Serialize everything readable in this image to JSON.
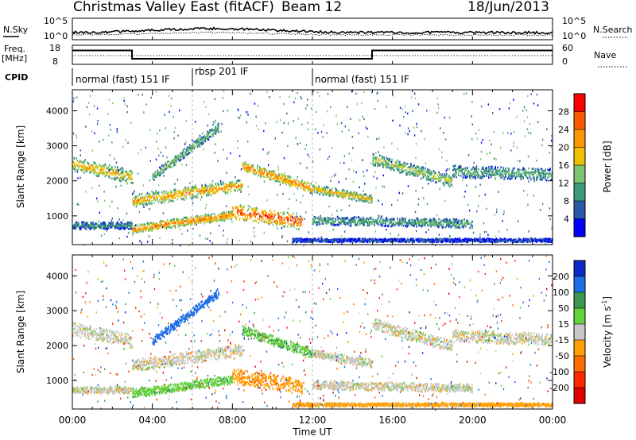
{
  "header": {
    "station": "Christmas Valley East (fitACF)",
    "beam": "Beam 12",
    "date": "18/Jun/2013"
  },
  "sky_panel": {
    "left_label": "N.Sky",
    "left_ticks": [
      "10^5",
      "10^0"
    ],
    "right_label": "N.Search",
    "right_ticks": [
      "10^5",
      "10^0"
    ]
  },
  "freq_panel": {
    "left_label_1": "Freq.",
    "left_label_2": "[MHz]",
    "left_ticks": [
      "18",
      "8"
    ],
    "right_label": "Nave",
    "right_ticks": [
      "60",
      "0"
    ]
  },
  "cpid": {
    "label": "CPID",
    "segments": [
      {
        "label": "normal (fast) 151 IF",
        "start_hour": 0,
        "end_hour": 6
      },
      {
        "label": "rbsp 201 IF",
        "start_hour": 6,
        "end_hour": 12
      },
      {
        "label": "normal (fast) 151 IF",
        "start_hour": 12,
        "end_hour": 24
      }
    ]
  },
  "xaxis": {
    "label": "Time UT",
    "ticks": [
      "00:00",
      "04:00",
      "08:00",
      "12:00",
      "16:00",
      "20:00",
      "00:00"
    ]
  },
  "power_colorbar": {
    "title": "Power [dB]",
    "ticks": [
      "28",
      "24",
      "20",
      "16",
      "12",
      "8",
      "4"
    ],
    "colors": [
      "#ff0000",
      "#ff5a00",
      "#ff9600",
      "#f0c000",
      "#7cc470",
      "#3c9c78",
      "#285aa8",
      "#0000ff"
    ]
  },
  "velocity_colorbar": {
    "title": "Velocity [m s",
    "title_sup": "-1",
    "title_end": "]",
    "ticks": [
      "200",
      "100",
      "50",
      "15",
      "-15",
      "-50",
      "-100",
      "-200"
    ],
    "colors": [
      "#0a28c8",
      "#1e6ee6",
      "#3c9650",
      "#64d23c",
      "#c8c8c8",
      "#ffa000",
      "#ff6e00",
      "#ff2800",
      "#dc0000"
    ]
  },
  "chart_data": [
    {
      "type": "heatmap",
      "title": "Power [dB]",
      "xlabel": "Time UT",
      "ylabel": "Slant Range [km]",
      "xlim": [
        0,
        24
      ],
      "ylim": [
        180,
        4600
      ],
      "y_ticks": [
        1000,
        2000,
        3000,
        4000
      ],
      "color_range": [
        0,
        32
      ],
      "bands": [
        {
          "name": "upper-echo-band",
          "x_start": 0,
          "x_end": 3,
          "y_start": 2500,
          "y_end": 2150,
          "width": 400,
          "value": 20
        },
        {
          "name": "upper-echo-band",
          "x_start": 3,
          "x_end": 8.5,
          "y_start": 1450,
          "y_end": 1900,
          "width": 350,
          "value": 22
        },
        {
          "name": "upper-echo-band",
          "x_start": 8.5,
          "x_end": 12,
          "y_start": 2450,
          "y_end": 1800,
          "width": 300,
          "value": 24
        },
        {
          "name": "upper-echo-band",
          "x_start": 12,
          "x_end": 15,
          "y_start": 1800,
          "y_end": 1500,
          "width": 250,
          "value": 20
        },
        {
          "name": "upper-echo-band",
          "x_start": 15,
          "x_end": 19,
          "y_start": 2650,
          "y_end": 2000,
          "width": 350,
          "value": 16
        },
        {
          "name": "upper-echo-band",
          "x_start": 19,
          "x_end": 24,
          "y_start": 2300,
          "y_end": 2200,
          "width": 350,
          "value": 12
        },
        {
          "name": "rising-arc",
          "x_start": 4,
          "x_end": 7.3,
          "y_start": 2150,
          "y_end": 3550,
          "width": 250,
          "value": 14
        },
        {
          "name": "lower-echo-band",
          "x_start": 3,
          "x_end": 8,
          "y_start": 650,
          "y_end": 1050,
          "width": 250,
          "value": 24
        },
        {
          "name": "lower-echo-band",
          "x_start": 8,
          "x_end": 11.5,
          "y_start": 1150,
          "y_end": 850,
          "width": 450,
          "value": 28
        },
        {
          "name": "near-range-band",
          "x_start": 0,
          "x_end": 3,
          "y_start": 750,
          "y_end": 750,
          "width": 200,
          "value": 10
        },
        {
          "name": "near-range-band",
          "x_start": 12,
          "x_end": 20,
          "y_start": 900,
          "y_end": 800,
          "width": 250,
          "value": 12
        },
        {
          "name": "ground-band",
          "x_start": 11,
          "x_end": 24,
          "y_start": 330,
          "y_end": 330,
          "width": 100,
          "value": 6
        }
      ]
    },
    {
      "type": "heatmap",
      "title": "Velocity [m s-1]",
      "xlabel": "Time UT",
      "ylabel": "Slant Range [km]",
      "xlim": [
        0,
        24
      ],
      "ylim": [
        180,
        4600
      ],
      "y_ticks": [
        1000,
        2000,
        3000,
        4000
      ],
      "color_range": [
        -250,
        250
      ],
      "bands": [
        {
          "name": "upper-echo-band",
          "x_start": 0,
          "x_end": 3,
          "y_start": 2500,
          "y_end": 2150,
          "width": 400,
          "value": 0
        },
        {
          "name": "upper-echo-band",
          "x_start": 3,
          "x_end": 8.5,
          "y_start": 1450,
          "y_end": 1900,
          "width": 350,
          "value": 0
        },
        {
          "name": "upper-echo-band",
          "x_start": 8.5,
          "x_end": 12,
          "y_start": 2450,
          "y_end": 1800,
          "width": 300,
          "value": 40
        },
        {
          "name": "upper-echo-band",
          "x_start": 12,
          "x_end": 15,
          "y_start": 1800,
          "y_end": 1500,
          "width": 250,
          "value": 0
        },
        {
          "name": "upper-echo-band",
          "x_start": 15,
          "x_end": 19,
          "y_start": 2650,
          "y_end": 2000,
          "width": 350,
          "value": 0
        },
        {
          "name": "upper-echo-band",
          "x_start": 19,
          "x_end": 24,
          "y_start": 2300,
          "y_end": 2200,
          "width": 350,
          "value": 0
        },
        {
          "name": "rising-arc",
          "x_start": 4,
          "x_end": 7.3,
          "y_start": 2150,
          "y_end": 3550,
          "width": 250,
          "value": 180
        },
        {
          "name": "lower-echo-band",
          "x_start": 3,
          "x_end": 8,
          "y_start": 650,
          "y_end": 1050,
          "width": 250,
          "value": 35
        },
        {
          "name": "lower-echo-band",
          "x_start": 8,
          "x_end": 11.5,
          "y_start": 1150,
          "y_end": 850,
          "width": 450,
          "value": -40
        },
        {
          "name": "near-range-band",
          "x_start": 0,
          "x_end": 3,
          "y_start": 750,
          "y_end": 750,
          "width": 200,
          "value": 0
        },
        {
          "name": "near-range-band",
          "x_start": 12,
          "x_end": 20,
          "y_start": 900,
          "y_end": 800,
          "width": 250,
          "value": 0
        },
        {
          "name": "ground-band",
          "x_start": 11,
          "x_end": 24,
          "y_start": 330,
          "y_end": 330,
          "width": 100,
          "value": -30
        }
      ]
    }
  ]
}
